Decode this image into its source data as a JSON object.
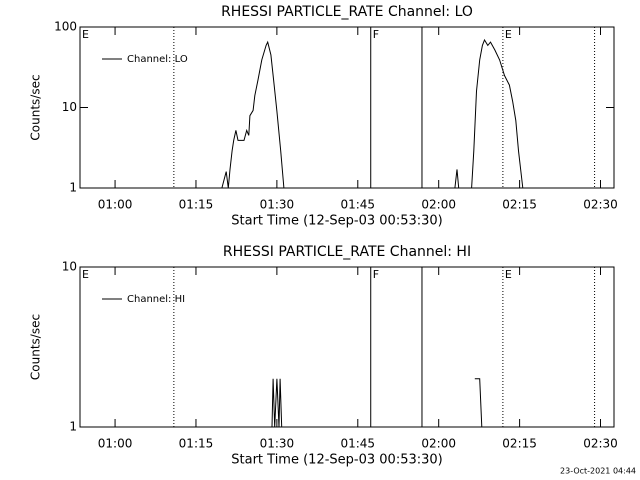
{
  "chart_data": [
    {
      "type": "line",
      "title": "RHESSI PARTICLE_RATE Channel: LO",
      "xlabel": "Start Time (12-Sep-03 00:53:30)",
      "ylabel": "Counts/sec",
      "log_y": true,
      "legend": "top-left",
      "xlim": [
        53.5,
        152.5
      ],
      "xticks": [
        {
          "value": 60,
          "label": "01:00"
        },
        {
          "value": 75,
          "label": "01:15"
        },
        {
          "value": 90,
          "label": "01:30"
        },
        {
          "value": 105,
          "label": "01:45"
        },
        {
          "value": 120,
          "label": "02:00"
        },
        {
          "value": 135,
          "label": "02:15"
        },
        {
          "value": 150,
          "label": "02:30"
        }
      ],
      "ylim": [
        1,
        100
      ],
      "yticks": [
        1,
        10,
        100
      ],
      "x": [
        79.8,
        80.6,
        81.0,
        81.3,
        81.7,
        82.0,
        82.4,
        82.8,
        83.9,
        84.4,
        84.8,
        85.0,
        85.6,
        85.9,
        86.5,
        87.2,
        88.0,
        88.3,
        88.9,
        89.4,
        90.0,
        90.7,
        91.3,
        null,
        123.0,
        123.4,
        123.7,
        null,
        126.1,
        126.5,
        127.0,
        127.6,
        128.1,
        128.5,
        129.1,
        129.6,
        130.4,
        131.3,
        132.2,
        133.1,
        133.7,
        134.3,
        134.8,
        135.6
      ],
      "series": [
        {
          "name": "Channel: LO",
          "color": "#000000",
          "values": [
            1,
            1.6,
            1,
            1.7,
            2.9,
            3.9,
            5.2,
            3.9,
            3.9,
            5.2,
            4.5,
            7.9,
            9.2,
            14,
            22,
            39,
            59,
            65,
            45,
            22,
            9,
            2.9,
            1,
            null,
            1,
            1.7,
            1,
            null,
            1,
            2.9,
            16,
            39,
            59,
            69,
            59,
            65,
            52,
            39,
            25,
            19,
            12,
            6.9,
            2.9,
            1
          ]
        }
      ],
      "vlines": [
        {
          "x": 70.9,
          "style": "dotted"
        },
        {
          "x": 107.4,
          "style": "solid"
        },
        {
          "x": 116.9,
          "style": "solid"
        },
        {
          "x": 131.9,
          "style": "dotted"
        },
        {
          "x": 148.9,
          "style": "dotted"
        }
      ],
      "annotations": [
        {
          "text": "E",
          "x": 53.5
        },
        {
          "text": "F",
          "x": 107.4
        },
        {
          "text": "E",
          "x": 131.9
        }
      ]
    },
    {
      "type": "line",
      "title": "RHESSI PARTICLE_RATE Channel: HI",
      "xlabel": "Start Time (12-Sep-03 00:53:30)",
      "ylabel": "Counts/sec",
      "log_y": true,
      "legend": "top-left",
      "xlim": [
        53.5,
        152.5
      ],
      "xticks": [
        {
          "value": 60,
          "label": "01:00"
        },
        {
          "value": 75,
          "label": "01:15"
        },
        {
          "value": 90,
          "label": "01:30"
        },
        {
          "value": 105,
          "label": "01:45"
        },
        {
          "value": 120,
          "label": "02:00"
        },
        {
          "value": 135,
          "label": "02:15"
        },
        {
          "value": 150,
          "label": "02:30"
        }
      ],
      "ylim": [
        1,
        10
      ],
      "yticks": [
        1,
        10
      ],
      "x": [
        89.1,
        89.3,
        89.6,
        90.0,
        90.4,
        90.6,
        90.9,
        null,
        126.7,
        127.6,
        128.0
      ],
      "series": [
        {
          "name": "Channel: HI",
          "color": "#000000",
          "values": [
            1,
            2,
            1,
            2,
            1,
            2,
            1,
            null,
            2,
            2,
            1
          ]
        }
      ],
      "vlines": [
        {
          "x": 70.9,
          "style": "dotted"
        },
        {
          "x": 107.4,
          "style": "solid"
        },
        {
          "x": 116.9,
          "style": "solid"
        },
        {
          "x": 131.9,
          "style": "dotted"
        },
        {
          "x": 148.9,
          "style": "dotted"
        }
      ],
      "annotations": [
        {
          "text": "E",
          "x": 53.5
        },
        {
          "text": "F",
          "x": 107.4
        },
        {
          "text": "E",
          "x": 131.9
        }
      ]
    }
  ],
  "footer": "23-Oct-2021 04:44"
}
